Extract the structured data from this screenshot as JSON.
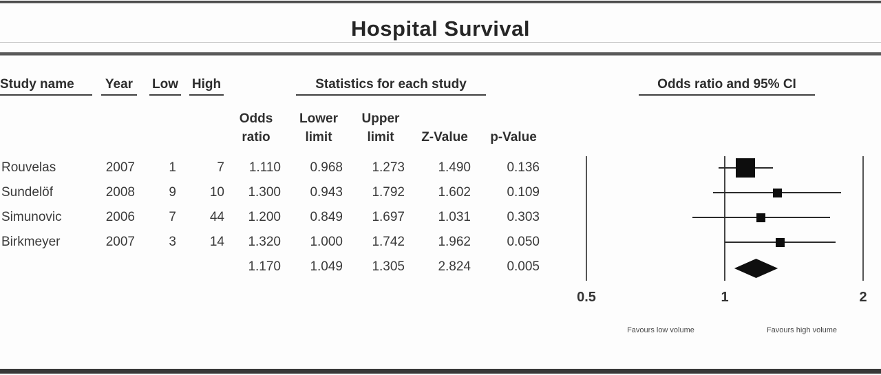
{
  "title": "Hospital Survival",
  "table": {
    "headers": {
      "study_name": "Study name",
      "year": "Year",
      "low": "Low",
      "high": "High",
      "statistics": "Statistics for each study"
    },
    "sub_headers": {
      "odds_ratio_line1": "Odds",
      "odds_ratio_line2": "ratio",
      "lower_limit_line1": "Lower",
      "lower_limit_line2": "limit",
      "upper_limit_line1": "Upper",
      "upper_limit_line2": "limit",
      "z_value": "Z-Value",
      "p_value": "p-Value"
    },
    "rows": [
      {
        "name": "Rouvelas",
        "year": "2007",
        "low": "1",
        "high": "7",
        "or": "1.110",
        "ll": "0.968",
        "ul": "1.273",
        "z": "1.490",
        "p": "0.136"
      },
      {
        "name": "Sundelöf",
        "year": "2008",
        "low": "9",
        "high": "10",
        "or": "1.300",
        "ll": "0.943",
        "ul": "1.792",
        "z": "1.602",
        "p": "0.109"
      },
      {
        "name": "Simunovic",
        "year": "2006",
        "low": "7",
        "high": "44",
        "or": "1.200",
        "ll": "0.849",
        "ul": "1.697",
        "z": "1.031",
        "p": "0.303"
      },
      {
        "name": "Birkmeyer",
        "year": "2007",
        "low": "3",
        "high": "14",
        "or": "1.320",
        "ll": "1.000",
        "ul": "1.742",
        "z": "1.962",
        "p": "0.050"
      }
    ],
    "summary": {
      "or": "1.170",
      "ll": "1.049",
      "ul": "1.305",
      "z": "2.824",
      "p": "0.005"
    }
  },
  "plot": {
    "header": "Odds ratio and 95% CI",
    "ticks": [
      "0.5",
      "1",
      "2"
    ],
    "favours_left": "Favours low volume",
    "favours_right": "Favours high volume"
  },
  "chart_data": {
    "type": "scatter",
    "subtype": "forest-plot",
    "title": "Hospital Survival",
    "x_scale": "log2",
    "xlim": [
      0.5,
      2
    ],
    "x_ticks": [
      0.5,
      1,
      2
    ],
    "studies": [
      {
        "name": "Rouvelas",
        "year": 2007,
        "low": 1,
        "high": 7,
        "odds_ratio": 1.11,
        "lower_limit": 0.968,
        "upper_limit": 1.273,
        "z_value": 1.49,
        "p_value": 0.136,
        "marker_size": 28
      },
      {
        "name": "Sundelöf",
        "year": 2008,
        "low": 9,
        "high": 10,
        "odds_ratio": 1.3,
        "lower_limit": 0.943,
        "upper_limit": 1.792,
        "z_value": 1.602,
        "p_value": 0.109,
        "marker_size": 13
      },
      {
        "name": "Simunovic",
        "year": 2006,
        "low": 7,
        "high": 44,
        "odds_ratio": 1.2,
        "lower_limit": 0.849,
        "upper_limit": 1.697,
        "z_value": 1.031,
        "p_value": 0.303,
        "marker_size": 13
      },
      {
        "name": "Birkmeyer",
        "year": 2007,
        "low": 3,
        "high": 14,
        "odds_ratio": 1.32,
        "lower_limit": 1.0,
        "upper_limit": 1.742,
        "z_value": 1.962,
        "p_value": 0.05,
        "marker_size": 13
      }
    ],
    "summary": {
      "odds_ratio": 1.17,
      "lower_limit": 1.049,
      "upper_limit": 1.305,
      "z_value": 2.824,
      "p_value": 0.005
    },
    "annotations": [
      "Favours low volume",
      "Favours high volume"
    ]
  }
}
